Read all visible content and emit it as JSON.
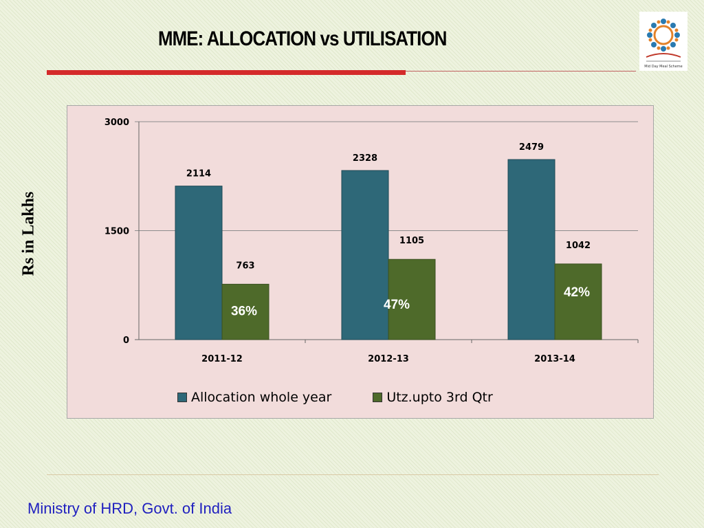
{
  "slide": {
    "title": "MME: ALLOCATION vs UTILISATION",
    "ylabel": "Rs in Lakhs",
    "footer": "Ministry of HRD, Govt. of India",
    "logo_text": "Mid Day Meal Scheme"
  },
  "colors": {
    "allocation": "#2e6878",
    "utilisation": "#4e6a2a",
    "red_rule": "#d42a2a",
    "footer_text": "#1f1fbf",
    "plot_bg": "#f2dcdb"
  },
  "chart_data": {
    "type": "bar",
    "categories": [
      "2011-12",
      "2012-13",
      "2013-14"
    ],
    "series": [
      {
        "name": "Allocation whole year",
        "values": [
          2114,
          2328,
          2479
        ],
        "labels": [
          "2114",
          "2328",
          "2479"
        ]
      },
      {
        "name": "Utz.upto 3rd Qtr",
        "values": [
          763,
          1105,
          1042
        ],
        "labels": [
          "763",
          "1105",
          "1042"
        ]
      }
    ],
    "percent_labels": [
      "36%",
      "47%",
      "42%"
    ],
    "yticks": [
      "0",
      "1500",
      "3000"
    ],
    "ylim": [
      0,
      3000
    ],
    "grid": true,
    "legend_position": "bottom"
  }
}
